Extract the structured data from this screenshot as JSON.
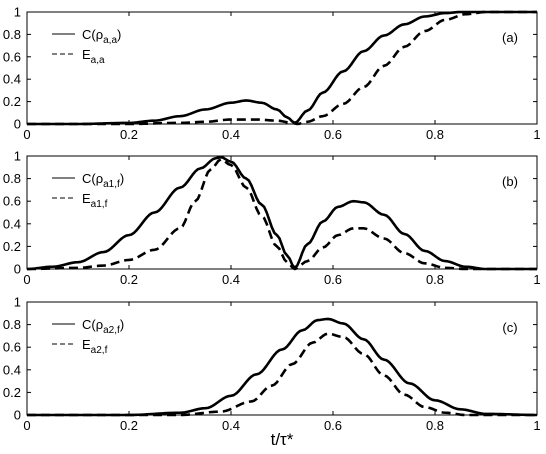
{
  "chart_data": [
    {
      "type": "line",
      "panel_label": "(a)",
      "xlim": [
        0,
        1
      ],
      "ylim": [
        0,
        1
      ],
      "xticks": [
        "0",
        "0.2",
        "0.4",
        "0.6",
        "0.8",
        "1"
      ],
      "yticks": [
        "0",
        "0.2",
        "0.4",
        "0.6",
        "0.8",
        "1"
      ],
      "legend_position": "top-left",
      "series": [
        {
          "name": "C(ρa,a)",
          "name_main": "C(ρ",
          "name_sub": "a,a",
          "name_tail": ")",
          "style": "solid",
          "points": [
            [
              0,
              0
            ],
            [
              0.1,
              0
            ],
            [
              0.2,
              0.01
            ],
            [
              0.25,
              0.03
            ],
            [
              0.3,
              0.07
            ],
            [
              0.35,
              0.13
            ],
            [
              0.4,
              0.19
            ],
            [
              0.43,
              0.21
            ],
            [
              0.46,
              0.19
            ],
            [
              0.49,
              0.13
            ],
            [
              0.51,
              0.06
            ],
            [
              0.525,
              0.01
            ],
            [
              0.55,
              0.12
            ],
            [
              0.58,
              0.28
            ],
            [
              0.62,
              0.47
            ],
            [
              0.66,
              0.65
            ],
            [
              0.7,
              0.79
            ],
            [
              0.74,
              0.89
            ],
            [
              0.78,
              0.96
            ],
            [
              0.82,
              0.99
            ],
            [
              0.85,
              1
            ],
            [
              1,
              1
            ]
          ]
        },
        {
          "name": "Ea,a",
          "name_main": "E",
          "name_sub": "a,a",
          "name_tail": "",
          "style": "dashed",
          "points": [
            [
              0,
              0
            ],
            [
              0.2,
              0
            ],
            [
              0.3,
              0.01
            ],
            [
              0.35,
              0.02
            ],
            [
              0.4,
              0.04
            ],
            [
              0.45,
              0.04
            ],
            [
              0.49,
              0.03
            ],
            [
              0.52,
              0.01
            ],
            [
              0.53,
              0
            ],
            [
              0.55,
              0.02
            ],
            [
              0.58,
              0.07
            ],
            [
              0.62,
              0.18
            ],
            [
              0.66,
              0.33
            ],
            [
              0.7,
              0.52
            ],
            [
              0.74,
              0.69
            ],
            [
              0.78,
              0.83
            ],
            [
              0.82,
              0.93
            ],
            [
              0.86,
              0.98
            ],
            [
              0.9,
              1
            ],
            [
              1,
              1
            ]
          ]
        }
      ]
    },
    {
      "type": "line",
      "panel_label": "(b)",
      "xlim": [
        0,
        1
      ],
      "ylim": [
        0,
        1
      ],
      "xticks": [
        "0",
        "0.2",
        "0.4",
        "0.6",
        "0.8",
        "1"
      ],
      "yticks": [
        "0",
        "0.2",
        "0.4",
        "0.6",
        "0.8",
        "1"
      ],
      "legend_position": "top-left",
      "series": [
        {
          "name": "C(ρa1,f)",
          "name_main": "C(ρ",
          "name_sub": "a1,f",
          "name_tail": ")",
          "style": "solid",
          "points": [
            [
              0,
              0
            ],
            [
              0.05,
              0.02
            ],
            [
              0.1,
              0.06
            ],
            [
              0.15,
              0.15
            ],
            [
              0.2,
              0.3
            ],
            [
              0.25,
              0.5
            ],
            [
              0.3,
              0.72
            ],
            [
              0.34,
              0.89
            ],
            [
              0.37,
              0.98
            ],
            [
              0.38,
              0.99
            ],
            [
              0.4,
              0.95
            ],
            [
              0.43,
              0.8
            ],
            [
              0.46,
              0.57
            ],
            [
              0.49,
              0.3
            ],
            [
              0.51,
              0.12
            ],
            [
              0.525,
              0.01
            ],
            [
              0.55,
              0.22
            ],
            [
              0.58,
              0.42
            ],
            [
              0.61,
              0.55
            ],
            [
              0.64,
              0.6
            ],
            [
              0.66,
              0.59
            ],
            [
              0.7,
              0.48
            ],
            [
              0.74,
              0.31
            ],
            [
              0.78,
              0.16
            ],
            [
              0.82,
              0.07
            ],
            [
              0.86,
              0.02
            ],
            [
              0.9,
              0
            ],
            [
              1,
              0
            ]
          ]
        },
        {
          "name": "Ea1,f",
          "name_main": "E",
          "name_sub": "a1,f",
          "name_tail": "",
          "style": "dashed",
          "points": [
            [
              0,
              0
            ],
            [
              0.1,
              0.01
            ],
            [
              0.15,
              0.03
            ],
            [
              0.2,
              0.08
            ],
            [
              0.25,
              0.17
            ],
            [
              0.3,
              0.36
            ],
            [
              0.33,
              0.6
            ],
            [
              0.36,
              0.88
            ],
            [
              0.38,
              0.97
            ],
            [
              0.4,
              0.92
            ],
            [
              0.43,
              0.72
            ],
            [
              0.46,
              0.47
            ],
            [
              0.49,
              0.2
            ],
            [
              0.51,
              0.06
            ],
            [
              0.525,
              0
            ],
            [
              0.55,
              0.07
            ],
            [
              0.58,
              0.19
            ],
            [
              0.61,
              0.3
            ],
            [
              0.64,
              0.36
            ],
            [
              0.66,
              0.36
            ],
            [
              0.7,
              0.27
            ],
            [
              0.74,
              0.14
            ],
            [
              0.78,
              0.05
            ],
            [
              0.82,
              0.01
            ],
            [
              0.86,
              0
            ],
            [
              1,
              0
            ]
          ]
        }
      ]
    },
    {
      "type": "line",
      "panel_label": "(c)",
      "xlim": [
        0,
        1
      ],
      "ylim": [
        0,
        1
      ],
      "xticks": [
        "0",
        "0.2",
        "0.4",
        "0.6",
        "0.8",
        "1"
      ],
      "yticks": [
        "0",
        "0.2",
        "0.4",
        "0.6",
        "0.8",
        "1"
      ],
      "xlabel": "t/τ*",
      "legend_position": "top-left",
      "series": [
        {
          "name": "C(ρa2,f)",
          "name_main": "C(ρ",
          "name_sub": "a2,f",
          "name_tail": ")",
          "style": "solid",
          "points": [
            [
              0,
              0
            ],
            [
              0.2,
              0
            ],
            [
              0.3,
              0.02
            ],
            [
              0.35,
              0.06
            ],
            [
              0.4,
              0.17
            ],
            [
              0.45,
              0.36
            ],
            [
              0.5,
              0.58
            ],
            [
              0.54,
              0.75
            ],
            [
              0.57,
              0.84
            ],
            [
              0.59,
              0.85
            ],
            [
              0.62,
              0.81
            ],
            [
              0.66,
              0.67
            ],
            [
              0.7,
              0.49
            ],
            [
              0.75,
              0.28
            ],
            [
              0.8,
              0.13
            ],
            [
              0.85,
              0.05
            ],
            [
              0.9,
              0.01
            ],
            [
              1,
              0
            ]
          ]
        },
        {
          "name": "Ea2,f",
          "name_main": "E",
          "name_sub": "a2,f",
          "name_tail": "",
          "style": "dashed",
          "points": [
            [
              0,
              0
            ],
            [
              0.3,
              0
            ],
            [
              0.38,
              0.03
            ],
            [
              0.44,
              0.12
            ],
            [
              0.48,
              0.26
            ],
            [
              0.52,
              0.45
            ],
            [
              0.56,
              0.64
            ],
            [
              0.59,
              0.72
            ],
            [
              0.62,
              0.69
            ],
            [
              0.66,
              0.54
            ],
            [
              0.7,
              0.35
            ],
            [
              0.74,
              0.18
            ],
            [
              0.78,
              0.07
            ],
            [
              0.82,
              0.02
            ],
            [
              0.86,
              0
            ],
            [
              1,
              0
            ]
          ]
        }
      ]
    }
  ]
}
